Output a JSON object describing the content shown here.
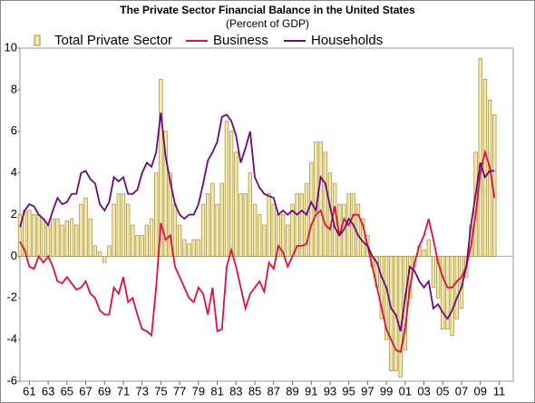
{
  "chart_data": {
    "type": "bar_line",
    "title": "The Private Sector Financial Balance in the United States",
    "subtitle": "(Percent of GDP)",
    "x": [
      1960,
      1960.5,
      1961,
      1961.5,
      1962,
      1962.5,
      1963,
      1963.5,
      1964,
      1964.5,
      1965,
      1965.5,
      1966,
      1966.5,
      1967,
      1967.5,
      1968,
      1968.5,
      1969,
      1969.5,
      1970,
      1970.5,
      1971,
      1971.5,
      1972,
      1972.5,
      1973,
      1973.5,
      1974,
      1974.5,
      1975,
      1975.5,
      1976,
      1976.5,
      1977,
      1977.5,
      1978,
      1978.5,
      1979,
      1979.5,
      1980,
      1980.5,
      1981,
      1981.5,
      1982,
      1982.5,
      1983,
      1983.5,
      1984,
      1984.5,
      1985,
      1985.5,
      1986,
      1986.5,
      1987,
      1987.5,
      1988,
      1988.5,
      1989,
      1989.5,
      1990,
      1990.5,
      1991,
      1991.5,
      1992,
      1992.5,
      1993,
      1993.5,
      1994,
      1994.5,
      1995,
      1995.5,
      1996,
      1996.5,
      1997,
      1997.5,
      1998,
      1998.5,
      1999,
      1999.5,
      2000,
      2000.5,
      2001,
      2001.5,
      2002,
      2002.5,
      2003,
      2003.5,
      2004,
      2004.5,
      2005,
      2005.5,
      2006,
      2006.5,
      2007,
      2007.5,
      2008,
      2008.5,
      2009,
      2009.5,
      2010,
      2010.5
    ],
    "series": [
      {
        "name": "Total Private Sector",
        "kind": "bar",
        "color": "#f3e8a4",
        "stroke": "#a08c3c",
        "values": [
          2.0,
          2.2,
          2.2,
          2.0,
          2.0,
          1.8,
          1.5,
          1.8,
          1.8,
          1.5,
          1.7,
          1.8,
          1.5,
          2.5,
          2.8,
          1.8,
          0.5,
          0.2,
          -0.3,
          0.5,
          2.5,
          3.0,
          3.0,
          2.5,
          1.5,
          1.0,
          1.0,
          1.5,
          1.8,
          4.0,
          8.5,
          6.0,
          4.0,
          2.5,
          1.5,
          0.8,
          0.6,
          0.8,
          0.8,
          2.5,
          3.0,
          3.5,
          2.5,
          3.5,
          6.5,
          6.0,
          5.0,
          3.0,
          3.0,
          4.0,
          2.5,
          2.0,
          1.5,
          3.0,
          2.5,
          2.0,
          2.0,
          1.5,
          2.5,
          3.0,
          3.0,
          3.5,
          4.5,
          5.5,
          5.5,
          5.0,
          4.0,
          3.5,
          2.5,
          2.5,
          3.0,
          3.0,
          2.5,
          1.8,
          1.0,
          -0.5,
          -1.5,
          -3.0,
          -4.0,
          -5.5,
          -5.5,
          -5.8,
          -4.5,
          -2.0,
          -0.5,
          0.5,
          0.3,
          0.8,
          -1.5,
          -2.0,
          -3.5,
          -3.5,
          -3.8,
          -3.0,
          -2.5,
          -1.0,
          1.5,
          5.0,
          9.5,
          8.5,
          7.5,
          6.8
        ]
      },
      {
        "name": "Business",
        "kind": "line",
        "color": "#e0103c",
        "values": [
          0.7,
          0.3,
          -0.5,
          -0.6,
          0.0,
          -0.3,
          0.0,
          -0.5,
          -1.2,
          -1.3,
          -1.0,
          -1.3,
          -1.6,
          -1.5,
          -1.2,
          -1.8,
          -2.0,
          -2.6,
          -2.8,
          -2.8,
          -1.5,
          -1.8,
          -1.0,
          -2.2,
          -2.0,
          -2.8,
          -3.5,
          -3.6,
          -3.8,
          -1.5,
          1.6,
          0.8,
          1.0,
          -0.5,
          -1.0,
          -1.5,
          -2.0,
          -2.2,
          -1.5,
          -1.8,
          -2.8,
          -1.5,
          -3.6,
          -3.5,
          -0.5,
          0.3,
          -0.5,
          -1.5,
          -2.5,
          -1.8,
          -1.5,
          -1.2,
          -1.7,
          -0.3,
          -0.6,
          0.5,
          0.2,
          -0.5,
          0.0,
          0.5,
          0.5,
          0.6,
          1.5,
          2.0,
          2.2,
          1.5,
          1.3,
          2.4,
          1.0,
          1.8,
          1.5,
          2.0,
          2.0,
          1.5,
          0.5,
          -0.5,
          -1.5,
          -2.5,
          -3.5,
          -4.0,
          -4.5,
          -4.6,
          -3.5,
          -1.5,
          -0.3,
          0.5,
          1.0,
          1.8,
          0.8,
          -0.3,
          -1.0,
          -1.5,
          -1.5,
          -1.2,
          -1.0,
          -0.5,
          0.5,
          2.0,
          4.0,
          5.0,
          4.3,
          2.8
        ]
      },
      {
        "name": "Households",
        "kind": "line",
        "color": "#6a0a7c",
        "values": [
          1.4,
          2.2,
          2.5,
          2.4,
          2.0,
          1.8,
          1.5,
          2.2,
          2.8,
          2.5,
          2.6,
          3.0,
          3.0,
          4.0,
          4.1,
          3.7,
          3.5,
          2.5,
          2.2,
          2.6,
          3.8,
          3.6,
          3.8,
          3.0,
          3.0,
          3.2,
          4.0,
          4.5,
          4.3,
          5.0,
          6.9,
          4.8,
          3.6,
          2.5,
          2.0,
          1.8,
          2.0,
          2.0,
          2.5,
          3.5,
          4.6,
          5.0,
          5.5,
          6.7,
          6.8,
          6.5,
          5.8,
          4.5,
          5.2,
          6.0,
          3.8,
          3.3,
          3.0,
          2.9,
          2.8,
          2.0,
          2.2,
          2.0,
          2.2,
          2.0,
          2.2,
          2.0,
          2.6,
          2.2,
          3.8,
          3.5,
          2.4,
          1.4,
          1.0,
          1.3,
          1.8,
          1.5,
          1.0,
          0.7,
          0.5,
          0.0,
          -0.3,
          -1.0,
          -1.5,
          -2.5,
          -2.8,
          -3.6,
          -2.0,
          -0.5,
          -0.7,
          -1.2,
          -1.5,
          -1.2,
          -2.5,
          -2.3,
          -2.7,
          -3.0,
          -2.6,
          -2.0,
          -1.5,
          -0.5,
          1.5,
          3.0,
          4.5,
          3.8,
          4.1,
          4.1
        ]
      }
    ],
    "xlim": [
      1960,
      2012.5
    ],
    "xticks": [
      {
        "value": 1961,
        "label": "61"
      },
      {
        "value": 1963,
        "label": "63"
      },
      {
        "value": 1965,
        "label": "65"
      },
      {
        "value": 1967,
        "label": "67"
      },
      {
        "value": 1969,
        "label": "69"
      },
      {
        "value": 1971,
        "label": "71"
      },
      {
        "value": 1973,
        "label": "73"
      },
      {
        "value": 1975,
        "label": "75"
      },
      {
        "value": 1977,
        "label": "77"
      },
      {
        "value": 1979,
        "label": "79"
      },
      {
        "value": 1981,
        "label": "81"
      },
      {
        "value": 1983,
        "label": "83"
      },
      {
        "value": 1985,
        "label": "85"
      },
      {
        "value": 1987,
        "label": "87"
      },
      {
        "value": 1989,
        "label": "89"
      },
      {
        "value": 1991,
        "label": "91"
      },
      {
        "value": 1993,
        "label": "93"
      },
      {
        "value": 1995,
        "label": "95"
      },
      {
        "value": 1997,
        "label": "97"
      },
      {
        "value": 1999,
        "label": "99"
      },
      {
        "value": 2001,
        "label": "01"
      },
      {
        "value": 2003,
        "label": "03"
      },
      {
        "value": 2005,
        "label": "05"
      },
      {
        "value": 2007,
        "label": "07"
      },
      {
        "value": 2009,
        "label": "09"
      },
      {
        "value": 2011,
        "label": "11"
      }
    ],
    "ylim": [
      -6,
      10
    ],
    "yticks": [
      -6,
      -4,
      -2,
      0,
      2,
      4,
      6,
      8,
      10
    ],
    "grid": false
  }
}
